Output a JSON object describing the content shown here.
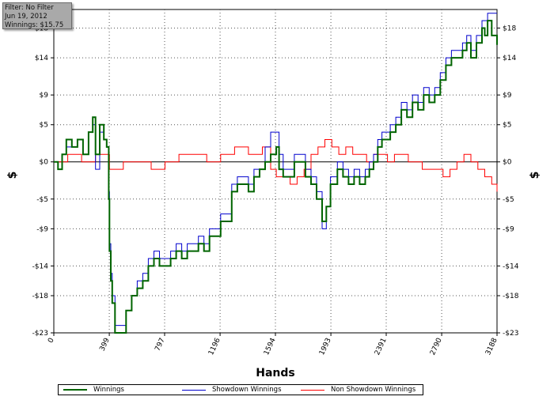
{
  "info_box": {
    "filter": "Filter: No Filter",
    "date": "Jun 19, 2012",
    "winnings": "Winnings: $15.75"
  },
  "chart_data": {
    "type": "line",
    "xlabel": "Hands",
    "ylabel_left": "$",
    "ylabel_right": "$",
    "xlim": [
      0,
      3188
    ],
    "ylim": [
      -23,
      20.5
    ],
    "x_ticks": [
      0,
      399,
      797,
      1196,
      1594,
      1993,
      2391,
      2790,
      3188
    ],
    "x_tick_labels": [
      "0",
      "399",
      "797",
      "1196",
      "1594",
      "1993",
      "2391",
      "2790",
      "3188"
    ],
    "y_ticks": [
      18,
      14,
      9,
      5,
      0,
      -5,
      -9,
      -14,
      -18,
      -23
    ],
    "y_tick_labels": [
      "$18",
      "$14",
      "$9",
      "$5",
      "$0",
      "-$5",
      "-$9",
      "-$14",
      "-$18",
      "-$23"
    ],
    "zero_line": true,
    "grid": true,
    "legend_position": "bottom",
    "series": [
      {
        "name": "Winnings",
        "color": "#006400",
        "points": [
          [
            0,
            0
          ],
          [
            30,
            -1
          ],
          [
            60,
            1
          ],
          [
            90,
            3
          ],
          [
            130,
            2
          ],
          [
            170,
            3
          ],
          [
            210,
            1
          ],
          [
            250,
            4
          ],
          [
            280,
            6
          ],
          [
            300,
            1
          ],
          [
            330,
            5
          ],
          [
            360,
            3
          ],
          [
            380,
            2
          ],
          [
            395,
            -5
          ],
          [
            400,
            -12
          ],
          [
            410,
            -16
          ],
          [
            420,
            -19
          ],
          [
            440,
            -23
          ],
          [
            480,
            -23
          ],
          [
            520,
            -20
          ],
          [
            560,
            -18
          ],
          [
            600,
            -17
          ],
          [
            640,
            -16
          ],
          [
            680,
            -14
          ],
          [
            720,
            -13
          ],
          [
            760,
            -14
          ],
          [
            800,
            -14
          ],
          [
            840,
            -13
          ],
          [
            880,
            -12
          ],
          [
            920,
            -13
          ],
          [
            960,
            -12
          ],
          [
            1000,
            -12
          ],
          [
            1040,
            -11
          ],
          [
            1080,
            -12
          ],
          [
            1120,
            -10
          ],
          [
            1160,
            -10
          ],
          [
            1200,
            -8
          ],
          [
            1240,
            -8
          ],
          [
            1280,
            -4
          ],
          [
            1320,
            -3
          ],
          [
            1360,
            -3
          ],
          [
            1400,
            -4
          ],
          [
            1440,
            -2
          ],
          [
            1480,
            -1
          ],
          [
            1520,
            0
          ],
          [
            1560,
            1
          ],
          [
            1600,
            2
          ],
          [
            1620,
            -1
          ],
          [
            1650,
            -2
          ],
          [
            1690,
            -2
          ],
          [
            1730,
            0
          ],
          [
            1770,
            0
          ],
          [
            1810,
            -2
          ],
          [
            1850,
            -3
          ],
          [
            1890,
            -5
          ],
          [
            1930,
            -8
          ],
          [
            1960,
            -6
          ],
          [
            1990,
            -3
          ],
          [
            2010,
            -3
          ],
          [
            2040,
            -1
          ],
          [
            2080,
            -2
          ],
          [
            2120,
            -3
          ],
          [
            2160,
            -2
          ],
          [
            2200,
            -3
          ],
          [
            2240,
            -2
          ],
          [
            2270,
            -1
          ],
          [
            2300,
            0
          ],
          [
            2330,
            2
          ],
          [
            2360,
            3
          ],
          [
            2391,
            3
          ],
          [
            2420,
            4
          ],
          [
            2460,
            5
          ],
          [
            2500,
            7
          ],
          [
            2540,
            6
          ],
          [
            2580,
            8
          ],
          [
            2620,
            7
          ],
          [
            2660,
            9
          ],
          [
            2700,
            8
          ],
          [
            2740,
            9
          ],
          [
            2780,
            11
          ],
          [
            2820,
            13
          ],
          [
            2860,
            14
          ],
          [
            2900,
            14
          ],
          [
            2940,
            15
          ],
          [
            2970,
            16
          ],
          [
            3000,
            14
          ],
          [
            3040,
            16
          ],
          [
            3080,
            18
          ],
          [
            3100,
            17
          ],
          [
            3120,
            19
          ],
          [
            3150,
            17
          ],
          [
            3188,
            15.75
          ]
        ]
      },
      {
        "name": "Showdown Winnings",
        "color": "#0000cd",
        "points": [
          [
            0,
            0
          ],
          [
            30,
            -1
          ],
          [
            60,
            1
          ],
          [
            90,
            2
          ],
          [
            130,
            2
          ],
          [
            170,
            3
          ],
          [
            210,
            1
          ],
          [
            250,
            4
          ],
          [
            280,
            5
          ],
          [
            300,
            -1
          ],
          [
            330,
            4
          ],
          [
            360,
            3
          ],
          [
            380,
            2
          ],
          [
            395,
            -4
          ],
          [
            400,
            -11
          ],
          [
            410,
            -15
          ],
          [
            420,
            -18
          ],
          [
            440,
            -22
          ],
          [
            480,
            -22
          ],
          [
            520,
            -20
          ],
          [
            560,
            -18
          ],
          [
            600,
            -16
          ],
          [
            640,
            -15
          ],
          [
            680,
            -13
          ],
          [
            720,
            -12
          ],
          [
            760,
            -13
          ],
          [
            800,
            -13
          ],
          [
            840,
            -12
          ],
          [
            880,
            -11
          ],
          [
            920,
            -12
          ],
          [
            960,
            -11
          ],
          [
            1000,
            -11
          ],
          [
            1040,
            -10
          ],
          [
            1080,
            -11
          ],
          [
            1120,
            -9
          ],
          [
            1160,
            -9
          ],
          [
            1200,
            -7
          ],
          [
            1240,
            -7
          ],
          [
            1280,
            -3
          ],
          [
            1320,
            -2
          ],
          [
            1360,
            -2
          ],
          [
            1400,
            -3
          ],
          [
            1440,
            -1
          ],
          [
            1480,
            -1
          ],
          [
            1520,
            2
          ],
          [
            1560,
            4
          ],
          [
            1600,
            4
          ],
          [
            1620,
            1
          ],
          [
            1650,
            -1
          ],
          [
            1690,
            -1
          ],
          [
            1730,
            1
          ],
          [
            1770,
            1
          ],
          [
            1810,
            -1
          ],
          [
            1850,
            -2
          ],
          [
            1890,
            -4
          ],
          [
            1930,
            -9
          ],
          [
            1960,
            -6
          ],
          [
            1990,
            -2
          ],
          [
            2010,
            -2
          ],
          [
            2040,
            0
          ],
          [
            2080,
            -1
          ],
          [
            2120,
            -2
          ],
          [
            2160,
            -1
          ],
          [
            2200,
            -2
          ],
          [
            2240,
            -1
          ],
          [
            2270,
            0
          ],
          [
            2300,
            1
          ],
          [
            2330,
            3
          ],
          [
            2360,
            4
          ],
          [
            2391,
            4
          ],
          [
            2420,
            5
          ],
          [
            2460,
            6
          ],
          [
            2500,
            8
          ],
          [
            2540,
            7
          ],
          [
            2580,
            9
          ],
          [
            2620,
            8
          ],
          [
            2660,
            10
          ],
          [
            2700,
            9
          ],
          [
            2740,
            10
          ],
          [
            2780,
            12
          ],
          [
            2820,
            14
          ],
          [
            2860,
            15
          ],
          [
            2900,
            15
          ],
          [
            2940,
            16
          ],
          [
            2970,
            17
          ],
          [
            3000,
            15
          ],
          [
            3040,
            17
          ],
          [
            3080,
            19
          ],
          [
            3100,
            19
          ],
          [
            3120,
            20
          ],
          [
            3150,
            20
          ],
          [
            3188,
            20
          ]
        ]
      },
      {
        "name": "Non Showdown Winnings",
        "color": "#ff0000",
        "points": [
          [
            0,
            0
          ],
          [
            100,
            1
          ],
          [
            200,
            0
          ],
          [
            300,
            1
          ],
          [
            400,
            -1
          ],
          [
            500,
            0
          ],
          [
            600,
            0
          ],
          [
            700,
            -1
          ],
          [
            800,
            0
          ],
          [
            900,
            1
          ],
          [
            1000,
            1
          ],
          [
            1100,
            0
          ],
          [
            1200,
            1
          ],
          [
            1300,
            2
          ],
          [
            1400,
            1
          ],
          [
            1500,
            2
          ],
          [
            1560,
            -1
          ],
          [
            1600,
            -2
          ],
          [
            1650,
            -2
          ],
          [
            1700,
            -3
          ],
          [
            1750,
            -2
          ],
          [
            1800,
            -1
          ],
          [
            1850,
            1
          ],
          [
            1900,
            2
          ],
          [
            1950,
            3
          ],
          [
            2000,
            2
          ],
          [
            2050,
            1
          ],
          [
            2100,
            2
          ],
          [
            2150,
            1
          ],
          [
            2200,
            1
          ],
          [
            2250,
            0
          ],
          [
            2300,
            1
          ],
          [
            2350,
            1
          ],
          [
            2400,
            0
          ],
          [
            2450,
            1
          ],
          [
            2500,
            1
          ],
          [
            2550,
            0
          ],
          [
            2600,
            0
          ],
          [
            2650,
            -1
          ],
          [
            2700,
            -1
          ],
          [
            2750,
            -1
          ],
          [
            2800,
            -2
          ],
          [
            2850,
            -1
          ],
          [
            2900,
            0
          ],
          [
            2950,
            1
          ],
          [
            3000,
            0
          ],
          [
            3050,
            -1
          ],
          [
            3100,
            -2
          ],
          [
            3150,
            -3
          ],
          [
            3188,
            -4
          ]
        ]
      }
    ]
  }
}
